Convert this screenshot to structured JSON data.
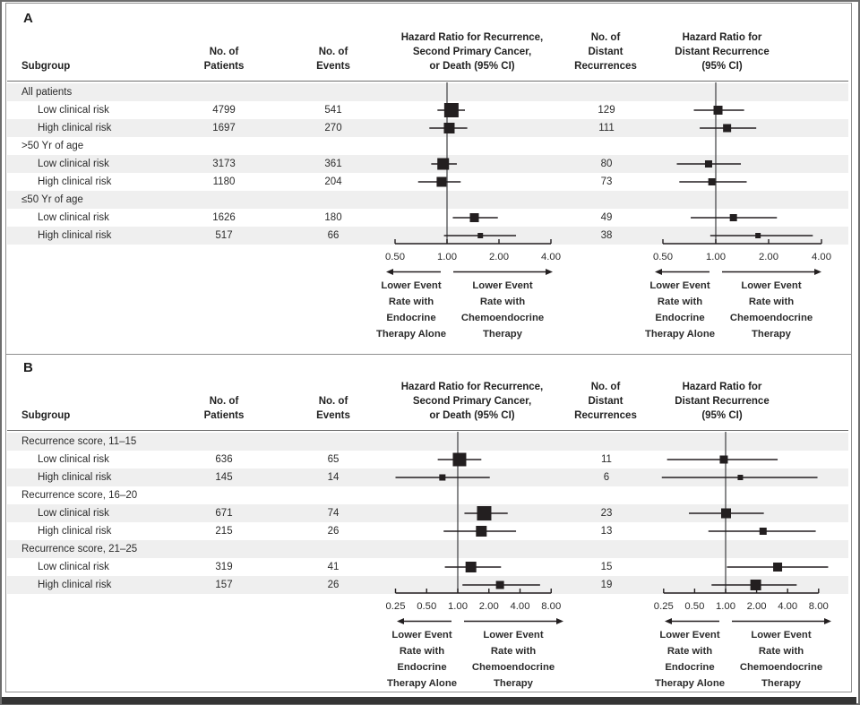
{
  "figure": {
    "panels": [
      {
        "label": "A"
      },
      {
        "label": "B"
      }
    ],
    "columns": {
      "subgroup": "Subgroup",
      "patients": [
        "No. of",
        "Patients"
      ],
      "events": [
        "No. of",
        "Events"
      ],
      "hr_death": [
        "Hazard Ratio for Recurrence,",
        "Second Primary Cancer,",
        "or Death (95% CI)"
      ],
      "distant": [
        "No. of",
        "Distant",
        "Recurrences"
      ],
      "hr_distant": [
        "Hazard Ratio for",
        "Distant Recurrence",
        "(95% CI)"
      ]
    },
    "arrow_labels": {
      "left": [
        "Lower Event",
        "Rate with",
        "Endocrine",
        "Therapy Alone"
      ],
      "right": [
        "Lower Event",
        "Rate with",
        "Chemoendocrine",
        "Therapy"
      ]
    },
    "colors": {
      "stripe": "#efefef",
      "ink": "#231f20",
      "refline": "#57585a",
      "border": "#8f8f8f",
      "text": "#2b2b2b"
    }
  },
  "chart_data": [
    {
      "type": "forest",
      "panel": "A",
      "axis_ticks": [
        0.5,
        1.0,
        2.0,
        4.0
      ],
      "axis_range": [
        0.5,
        4.0
      ],
      "reference_line": 1.0,
      "rows": [
        {
          "label": "All patients",
          "category": true
        },
        {
          "label": "Low clinical risk",
          "patients": "4799",
          "events": "541",
          "distant": "129",
          "death": {
            "hr": 1.06,
            "lo": 0.88,
            "hi": 1.27,
            "w": 16
          },
          "dr": {
            "hr": 1.03,
            "lo": 0.75,
            "hi": 1.45,
            "w": 10
          }
        },
        {
          "label": "High clinical risk",
          "patients": "1697",
          "events": "270",
          "distant": "111",
          "death": {
            "hr": 1.03,
            "lo": 0.79,
            "hi": 1.31,
            "w": 12
          },
          "dr": {
            "hr": 1.16,
            "lo": 0.81,
            "hi": 1.7,
            "w": 9
          }
        },
        {
          "label": ">50 Yr of age",
          "category": true
        },
        {
          "label": "Low clinical risk",
          "patients": "3173",
          "events": "361",
          "distant": "80",
          "death": {
            "hr": 0.95,
            "lo": 0.81,
            "hi": 1.14,
            "w": 13
          },
          "dr": {
            "hr": 0.91,
            "lo": 0.6,
            "hi": 1.39,
            "w": 8
          }
        },
        {
          "label": "High clinical risk",
          "patients": "1180",
          "events": "204",
          "distant": "73",
          "death": {
            "hr": 0.93,
            "lo": 0.68,
            "hi": 1.2,
            "w": 11
          },
          "dr": {
            "hr": 0.95,
            "lo": 0.62,
            "hi": 1.5,
            "w": 8
          }
        },
        {
          "label": "≤50 Yr of age",
          "category": true
        },
        {
          "label": "Low clinical risk",
          "patients": "1626",
          "events": "180",
          "distant": "49",
          "death": {
            "hr": 1.44,
            "lo": 1.08,
            "hi": 1.97,
            "w": 10
          },
          "dr": {
            "hr": 1.26,
            "lo": 0.72,
            "hi": 2.23,
            "w": 8
          }
        },
        {
          "label": "High clinical risk",
          "patients": "517",
          "events": "66",
          "distant": "38",
          "death": {
            "hr": 1.56,
            "lo": 0.96,
            "hi": 2.51,
            "w": 6
          },
          "dr": {
            "hr": 1.74,
            "lo": 0.93,
            "hi": 3.57,
            "w": 6
          }
        }
      ]
    },
    {
      "type": "forest",
      "panel": "B",
      "axis_ticks": [
        0.25,
        0.5,
        1.0,
        2.0,
        4.0,
        8.0
      ],
      "axis_range": [
        0.25,
        8.0
      ],
      "reference_line": 1.0,
      "rows": [
        {
          "label": "Recurrence score, 11–15",
          "category": true
        },
        {
          "label": "Low clinical risk",
          "patients": "636",
          "events": "65",
          "distant": "11",
          "death": {
            "hr": 1.04,
            "lo": 0.64,
            "hi": 1.69,
            "w": 15
          },
          "dr": {
            "hr": 0.96,
            "lo": 0.27,
            "hi": 3.2,
            "w": 9
          }
        },
        {
          "label": "High clinical risk",
          "patients": "145",
          "events": "14",
          "distant": "6",
          "death": {
            "hr": 0.71,
            "lo": 0.25,
            "hi": 2.04,
            "w": 7
          },
          "dr": {
            "hr": 1.39,
            "lo": 0.24,
            "hi": 7.8,
            "w": 6
          }
        },
        {
          "label": "Recurrence score, 16–20",
          "category": true
        },
        {
          "label": "Low clinical risk",
          "patients": "671",
          "events": "74",
          "distant": "23",
          "death": {
            "hr": 1.8,
            "lo": 1.16,
            "hi": 3.04,
            "w": 16
          },
          "dr": {
            "hr": 1.01,
            "lo": 0.44,
            "hi": 2.35,
            "w": 11
          }
        },
        {
          "label": "High clinical risk",
          "patients": "215",
          "events": "26",
          "distant": "13",
          "death": {
            "hr": 1.69,
            "lo": 0.73,
            "hi": 3.66,
            "w": 12
          },
          "dr": {
            "hr": 2.31,
            "lo": 0.68,
            "hi": 7.5,
            "w": 8
          }
        },
        {
          "label": "Recurrence score, 21–25",
          "category": true
        },
        {
          "label": "Low clinical risk",
          "patients": "319",
          "events": "41",
          "distant": "15",
          "death": {
            "hr": 1.34,
            "lo": 0.75,
            "hi": 2.62,
            "w": 12
          },
          "dr": {
            "hr": 3.2,
            "lo": 1.03,
            "hi": 9.9,
            "w": 10
          }
        },
        {
          "label": "High clinical risk",
          "patients": "157",
          "events": "26",
          "distant": "19",
          "death": {
            "hr": 2.56,
            "lo": 1.11,
            "hi": 6.25,
            "w": 9
          },
          "dr": {
            "hr": 1.96,
            "lo": 0.73,
            "hi": 4.9,
            "w": 12
          }
        }
      ]
    }
  ]
}
